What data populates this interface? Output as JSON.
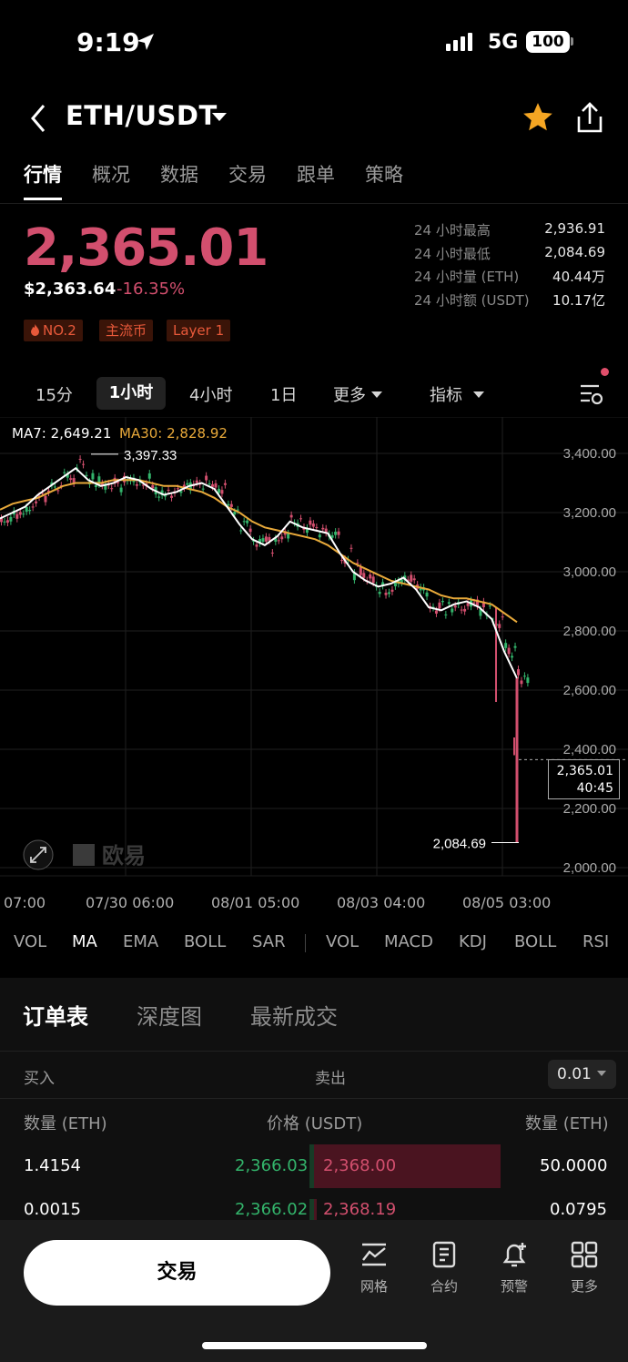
{
  "status_bar": {
    "time": "9:19",
    "network": "5G",
    "battery": "100"
  },
  "header": {
    "pair": "ETH/USDT"
  },
  "tabs": [
    "行情",
    "概况",
    "数据",
    "交易",
    "跟单",
    "策略"
  ],
  "ticker": {
    "price": "2,365.01",
    "usd_price": "$2,363.64",
    "change": "-16.35%",
    "tags": [
      "NO.2",
      "主流币",
      "Layer 1"
    ],
    "stats": [
      {
        "label": "24 小时最高",
        "value": "2,936.91"
      },
      {
        "label": "24 小时最低",
        "value": "2,084.69"
      },
      {
        "label": "24 小时量 (ETH)",
        "value": "40.44万"
      },
      {
        "label": "24 小时额 (USDT)",
        "value": "10.17亿"
      }
    ]
  },
  "timeframes": {
    "items": [
      "15分",
      "1小时",
      "4小时",
      "1日"
    ],
    "active": "1小时",
    "more": "更多",
    "indicator": "指标"
  },
  "chart": {
    "ma7": "MA7: 2,649.21",
    "ma30": "MA30: 2,828.92",
    "high_label": "3,397.33",
    "low_label": "2,084.69",
    "last_price": "2,365.01",
    "countdown": "40:45",
    "watermark": "欧易",
    "colors": {
      "up": "#33b46b",
      "down": "#d24f6e",
      "ma7": "#ffffff",
      "ma30": "#e8a93a"
    }
  },
  "chart_data": {
    "type": "line",
    "title": "",
    "xlabel": "",
    "ylabel": "",
    "ylim": [
      1950,
      3500
    ],
    "yticks": [
      "3,400.00",
      "3,200.00",
      "3,000.00",
      "2,800.00",
      "2,600.00",
      "2,400.00",
      "2,200.00",
      "2,000.00"
    ],
    "ytick_values": [
      3400,
      3200,
      3000,
      2800,
      2600,
      2400,
      2200,
      2000
    ],
    "xticks": [
      "07:00",
      "07/30 06:00",
      "08/01 05:00",
      "08/03 04:00",
      "08/05 03:00"
    ],
    "grid": true,
    "series": [
      {
        "name": "MA7",
        "values": [
          3180,
          3200,
          3220,
          3260,
          3290,
          3320,
          3350,
          3310,
          3290,
          3300,
          3320,
          3310,
          3280,
          3260,
          3270,
          3290,
          3300,
          3280,
          3220,
          3160,
          3110,
          3090,
          3120,
          3170,
          3150,
          3140,
          3130,
          3060,
          3000,
          2970,
          2950,
          2960,
          2980,
          2940,
          2880,
          2870,
          2890,
          2900,
          2880,
          2840,
          2730,
          2640
        ]
      },
      {
        "name": "MA30",
        "values": [
          3210,
          3230,
          3240,
          3250,
          3270,
          3290,
          3300,
          3300,
          3300,
          3310,
          3310,
          3310,
          3300,
          3290,
          3290,
          3280,
          3270,
          3250,
          3220,
          3200,
          3170,
          3150,
          3140,
          3130,
          3120,
          3110,
          3090,
          3060,
          3030,
          3010,
          2990,
          2970,
          2960,
          2950,
          2940,
          2920,
          2910,
          2910,
          2900,
          2890,
          2860,
          2830
        ]
      }
    ],
    "annotations": {
      "high": 3397.33,
      "low": 2084.69,
      "last": 2365.01
    }
  },
  "indicators": {
    "main": [
      "VOL",
      "MA",
      "EMA",
      "BOLL",
      "SAR"
    ],
    "sub": [
      "VOL",
      "MACD",
      "KDJ",
      "BOLL",
      "RSI"
    ],
    "active": "MA"
  },
  "orderbook": {
    "tabs": [
      "订单表",
      "深度图",
      "最新成交"
    ],
    "buy": "买入",
    "sell": "卖出",
    "step": "0.01",
    "col_qty_buy": "数量 (ETH)",
    "col_price": "价格 (USDT)",
    "col_qty_sell": "数量 (ETH)",
    "rows": [
      {
        "bid_qty": "1.4154",
        "bid_price": "2,366.03",
        "ask_price": "2,368.00",
        "ask_qty": "50.0000"
      },
      {
        "bid_qty": "0.0015",
        "bid_price": "2,366.02",
        "ask_price": "2,368.19",
        "ask_qty": "0.0795"
      }
    ]
  },
  "bottom_bar": {
    "trade": "交易",
    "items": [
      "网格",
      "合约",
      "预警",
      "更多"
    ]
  }
}
